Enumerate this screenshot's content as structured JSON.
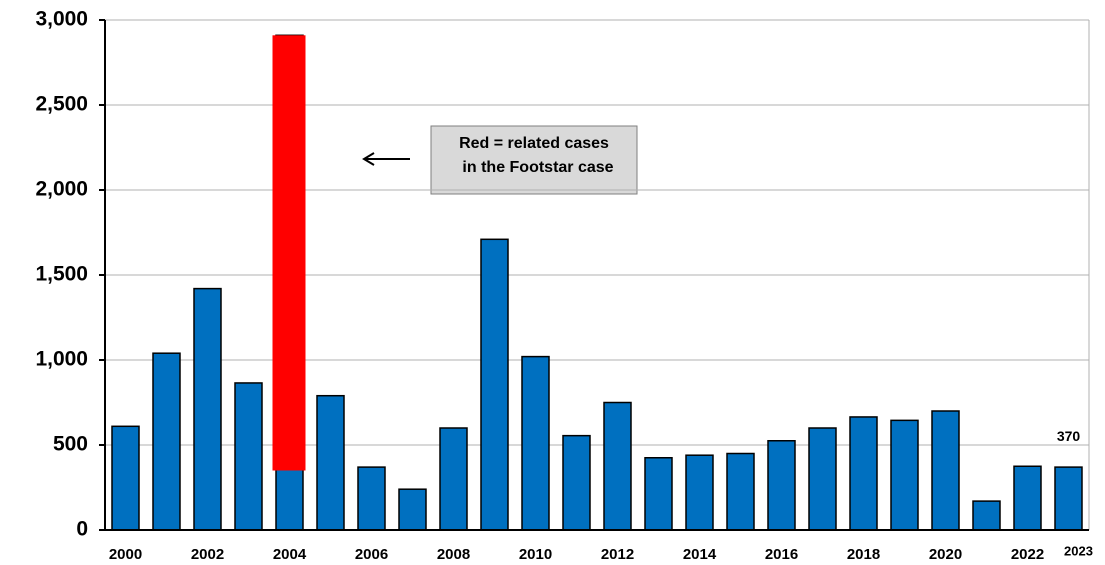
{
  "chart_data": {
    "type": "bar",
    "categories": [
      "2000",
      null,
      "2002",
      null,
      "2004",
      null,
      "2006",
      null,
      "2008",
      null,
      "2010",
      null,
      "2012",
      null,
      "2014",
      null,
      "2016",
      null,
      "2018",
      null,
      "2020",
      null,
      "2022",
      "2023"
    ],
    "values": [
      610,
      1040,
      1420,
      865,
      2910,
      790,
      370,
      240,
      600,
      1710,
      1020,
      555,
      750,
      425,
      440,
      450,
      525,
      600,
      665,
      645,
      700,
      170,
      375,
      370
    ],
    "value_labels": [
      null,
      null,
      null,
      null,
      null,
      null,
      null,
      null,
      null,
      null,
      null,
      null,
      null,
      null,
      null,
      null,
      null,
      null,
      null,
      null,
      null,
      null,
      null,
      "370"
    ],
    "color": "#0070c0",
    "related_values": [
      null,
      null,
      null,
      null,
      2560,
      null,
      null,
      null,
      null,
      null,
      null,
      null,
      null,
      null,
      null,
      null,
      null,
      null,
      null,
      null,
      null,
      null,
      null,
      null
    ],
    "related_color": "#ff0000",
    "annotation": [
      "Red = related cases",
      "in the Footstar case"
    ],
    "ylim": [
      0,
      3000
    ],
    "yticks": [
      0,
      500,
      {
        "value": 1000,
        "label": "1,000"
      },
      {
        "value": 1500,
        "label": "1,500"
      },
      {
        "value": 2000,
        "label": "2,000"
      },
      {
        "value": 2500,
        "label": "2,500"
      },
      {
        "value": 3000,
        "label": "3,000"
      }
    ],
    "grid": true
  }
}
